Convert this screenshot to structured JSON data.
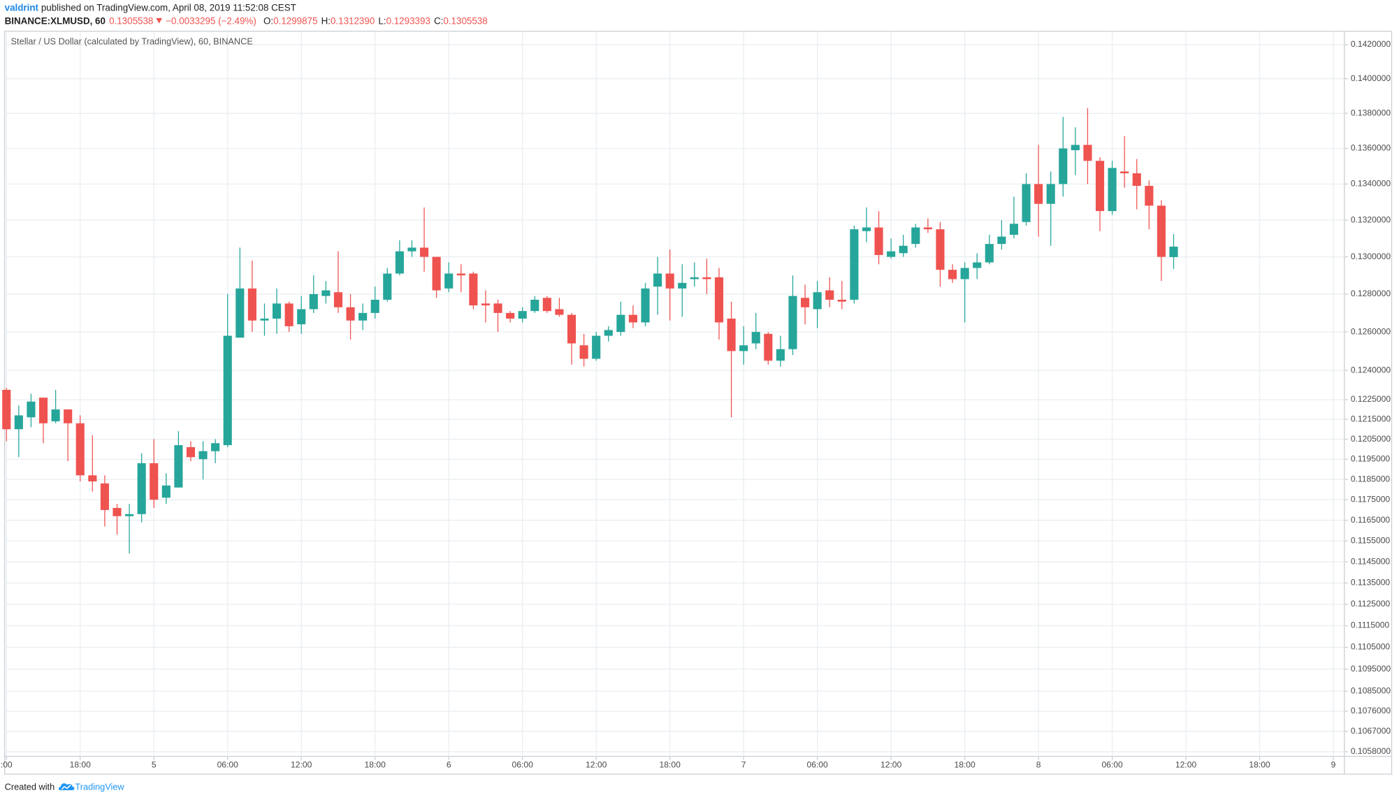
{
  "header": {
    "author": "valdrint",
    "published": "published on TradingView.com, April 08, 2019 11:52:08 CEST",
    "symbol": "BINANCE:XLMUSD, 60",
    "last": "0.1305538",
    "change": "−0.0033295 (−2.49%)",
    "ohlc": [
      {
        "label": "O:",
        "value": "0.1299875"
      },
      {
        "label": "H:",
        "value": "0.1312390"
      },
      {
        "label": "L:",
        "value": "0.1293393"
      },
      {
        "label": "C:",
        "value": "0.1305538"
      }
    ]
  },
  "footer": {
    "text": "Created with",
    "brand": "TradingView"
  },
  "chart_data": {
    "type": "candlestick",
    "title": "Stellar / US Dollar (calculated by TradingView), 60, BINANCE",
    "up_color": "#26a69a",
    "down_color": "#ef5350",
    "log_scale": true,
    "grid": true,
    "open": [
      0.123,
      0.121,
      0.1216,
      0.1226,
      0.1214,
      0.122,
      0.1213,
      0.1187,
      0.1183,
      0.1171,
      0.1167,
      0.1168,
      0.1193,
      0.1176,
      0.1181,
      0.1201,
      0.1195,
      0.1199,
      0.1202,
      0.1257,
      0.1283,
      0.1266,
      0.1267,
      0.1275,
      0.1264,
      0.1272,
      0.1279,
      0.1281,
      0.1273,
      0.1266,
      0.127,
      0.1277,
      0.1291,
      0.1303,
      0.1305,
      0.13,
      0.1283,
      0.1291,
      0.1291,
      0.1275,
      0.1275,
      0.127,
      0.1267,
      0.1271,
      0.1278,
      0.1272,
      0.1269,
      0.1253,
      0.1246,
      0.1258,
      0.126,
      0.1269,
      0.1265,
      0.1284,
      0.1291,
      0.1283,
      0.1288,
      0.1289,
      0.1289,
      0.1267,
      0.125,
      0.1254,
      0.1259,
      0.1245,
      0.1251,
      0.1278,
      0.1272,
      0.1282,
      0.1277,
      0.1277,
      0.1314,
      0.1316,
      0.13,
      0.1302,
      0.1307,
      0.1316,
      0.1315,
      0.1293,
      0.1288,
      0.1294,
      0.1297,
      0.1307,
      0.1312,
      0.1319,
      0.134,
      0.1329,
      0.134,
      0.1359,
      0.1362,
      0.1353,
      0.1325,
      0.1347,
      0.1346,
      0.1339,
      0.1328,
      0.1299875
    ],
    "high": [
      0.1231,
      0.1222,
      0.1228,
      0.1226,
      0.123,
      0.122,
      0.1217,
      0.1207,
      0.1187,
      0.1173,
      0.1173,
      0.1198,
      0.1205,
      0.1188,
      0.1209,
      0.1204,
      0.1204,
      0.1205,
      0.128,
      0.1305,
      0.1298,
      0.1275,
      0.1283,
      0.1276,
      0.1279,
      0.129,
      0.1287,
      0.1303,
      0.128,
      0.1275,
      0.1284,
      0.1294,
      0.1309,
      0.1309,
      0.1327,
      0.13,
      0.1297,
      0.1296,
      0.1292,
      0.1282,
      0.1277,
      0.1271,
      0.1273,
      0.1279,
      0.1279,
      0.1278,
      0.127,
      0.1259,
      0.126,
      0.1263,
      0.1276,
      0.1274,
      0.1286,
      0.13,
      0.1304,
      0.1296,
      0.1297,
      0.1299,
      0.1294,
      0.1276,
      0.1263,
      0.127,
      0.126,
      0.1258,
      0.129,
      0.1285,
      0.1287,
      0.1289,
      0.1287,
      0.1317,
      0.1327,
      0.1325,
      0.131,
      0.1312,
      0.1318,
      0.1321,
      0.1319,
      0.1296,
      0.1297,
      0.1302,
      0.1312,
      0.132,
      0.1333,
      0.1346,
      0.1362,
      0.1347,
      0.1378,
      0.1372,
      0.1383,
      0.1355,
      0.1353,
      0.1367,
      0.1354,
      0.1342,
      0.1331,
      0.131239
    ],
    "low": [
      0.1204,
      0.1196,
      0.1211,
      0.1203,
      0.1213,
      0.1194,
      0.1184,
      0.1179,
      0.1162,
      0.1158,
      0.1149,
      0.1164,
      0.1171,
      0.1173,
      0.1181,
      0.1194,
      0.1185,
      0.1193,
      0.1201,
      0.1257,
      0.126,
      0.1258,
      0.1259,
      0.126,
      0.1259,
      0.127,
      0.1275,
      0.127,
      0.1256,
      0.1261,
      0.1267,
      0.1276,
      0.129,
      0.13,
      0.1292,
      0.1278,
      0.1281,
      0.1281,
      0.1272,
      0.1265,
      0.126,
      0.1265,
      0.1265,
      0.127,
      0.127,
      0.1268,
      0.1243,
      0.1242,
      0.1245,
      0.1255,
      0.1258,
      0.1262,
      0.1263,
      0.1269,
      0.1266,
      0.1268,
      0.1284,
      0.128,
      0.1256,
      0.1216,
      0.1243,
      0.1251,
      0.1243,
      0.1242,
      0.1248,
      0.1264,
      0.1262,
      0.1273,
      0.1272,
      0.1275,
      0.1308,
      0.1296,
      0.1299,
      0.13,
      0.1305,
      0.1313,
      0.1284,
      0.1286,
      0.1265,
      0.1288,
      0.1296,
      0.1304,
      0.131,
      0.1317,
      0.1311,
      0.1306,
      0.1333,
      0.1345,
      0.134,
      0.1314,
      0.1323,
      0.1338,
      0.1326,
      0.1315,
      0.1287,
      0.1293393
    ],
    "close": [
      0.121,
      0.1217,
      0.1224,
      0.1213,
      0.122,
      0.1213,
      0.1187,
      0.1184,
      0.117,
      0.1167,
      0.1168,
      0.1193,
      0.1175,
      0.1182,
      0.1202,
      0.1196,
      0.1199,
      0.1203,
      0.1258,
      0.1283,
      0.1266,
      0.1267,
      0.1275,
      0.1263,
      0.1272,
      0.128,
      0.1282,
      0.1273,
      0.1266,
      0.127,
      0.1277,
      0.1291,
      0.1303,
      0.1305,
      0.13,
      0.1282,
      0.1291,
      0.129,
      0.1274,
      0.1274,
      0.127,
      0.1267,
      0.1271,
      0.1277,
      0.1271,
      0.1269,
      0.1254,
      0.1246,
      0.1258,
      0.1261,
      0.1269,
      0.1265,
      0.1283,
      0.1291,
      0.1283,
      0.1286,
      0.1289,
      0.1288,
      0.1265,
      0.125,
      0.1253,
      0.126,
      0.1245,
      0.1251,
      0.1279,
      0.1273,
      0.1281,
      0.1277,
      0.1276,
      0.1315,
      0.1316,
      0.1301,
      0.1303,
      0.1306,
      0.1316,
      0.1315,
      0.1293,
      0.1288,
      0.1294,
      0.1297,
      0.1307,
      0.1311,
      0.1318,
      0.134,
      0.1329,
      0.134,
      0.136,
      0.1362,
      0.1353,
      0.1325,
      0.1349,
      0.1346,
      0.1339,
      0.1328,
      0.13,
      0.1305538
    ],
    "xlim": [
      -0.15,
      108.9
    ],
    "xticks": [
      {
        "value": 0,
        "label": ":00"
      },
      {
        "value": 6,
        "label": "18:00"
      },
      {
        "value": 12,
        "label": "5"
      },
      {
        "value": 18,
        "label": "06:00"
      },
      {
        "value": 24,
        "label": "12:00"
      },
      {
        "value": 30,
        "label": "18:00"
      },
      {
        "value": 36,
        "label": "6"
      },
      {
        "value": 42,
        "label": "06:00"
      },
      {
        "value": 48,
        "label": "12:00"
      },
      {
        "value": 54,
        "label": "18:00"
      },
      {
        "value": 60,
        "label": "7"
      },
      {
        "value": 66,
        "label": "06:00"
      },
      {
        "value": 72,
        "label": "12:00"
      },
      {
        "value": 78,
        "label": "18:00"
      },
      {
        "value": 84,
        "label": "8"
      },
      {
        "value": 90,
        "label": "06:00"
      },
      {
        "value": 96,
        "label": "12:00"
      },
      {
        "value": 102,
        "label": "18:00"
      },
      {
        "value": 108,
        "label": "9"
      }
    ],
    "ylim": [
      0.1056,
      0.1428
    ],
    "yticks": [
      {
        "value": 0.1058,
        "label": "0.1058000"
      },
      {
        "value": 0.1067,
        "label": "0.1067000"
      },
      {
        "value": 0.1076,
        "label": "0.1076000"
      },
      {
        "value": 0.1085,
        "label": "0.1085000"
      },
      {
        "value": 0.1095,
        "label": "0.1095000"
      },
      {
        "value": 0.1105,
        "label": "0.1105000"
      },
      {
        "value": 0.1115,
        "label": "0.1115000"
      },
      {
        "value": 0.1125,
        "label": "0.1125000"
      },
      {
        "value": 0.1135,
        "label": "0.1135000"
      },
      {
        "value": 0.1145,
        "label": "0.1145000"
      },
      {
        "value": 0.1155,
        "label": "0.1155000"
      },
      {
        "value": 0.1165,
        "label": "0.1165000"
      },
      {
        "value": 0.1175,
        "label": "0.1175000"
      },
      {
        "value": 0.1185,
        "label": "0.1185000"
      },
      {
        "value": 0.1195,
        "label": "0.1195000"
      },
      {
        "value": 0.1205,
        "label": "0.1205000"
      },
      {
        "value": 0.1215,
        "label": "0.1215000"
      },
      {
        "value": 0.1225,
        "label": "0.1225000"
      },
      {
        "value": 0.124,
        "label": "0.1240000"
      },
      {
        "value": 0.126,
        "label": "0.1260000"
      },
      {
        "value": 0.128,
        "label": "0.1280000"
      },
      {
        "value": 0.13,
        "label": "0.1300000"
      },
      {
        "value": 0.132,
        "label": "0.1320000"
      },
      {
        "value": 0.134,
        "label": "0.1340000"
      },
      {
        "value": 0.136,
        "label": "0.1360000"
      },
      {
        "value": 0.138,
        "label": "0.1380000"
      },
      {
        "value": 0.14,
        "label": "0.1400000"
      },
      {
        "value": 0.142,
        "label": "0.1420000"
      }
    ]
  }
}
